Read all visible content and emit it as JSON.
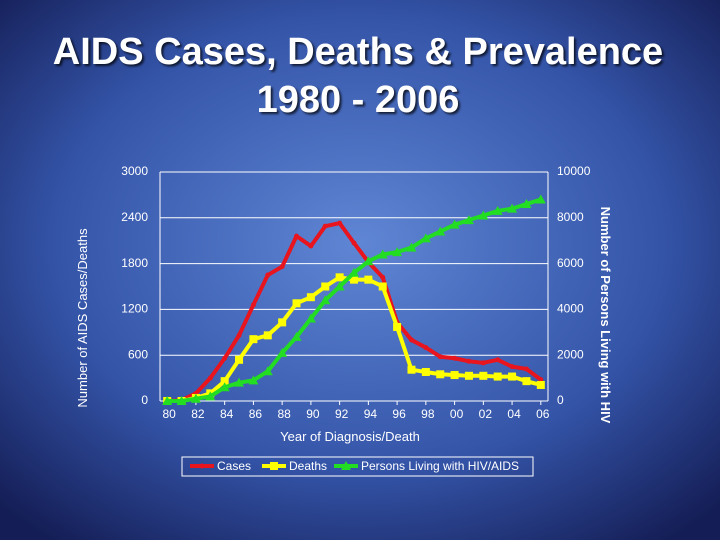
{
  "chart_data": {
    "type": "line",
    "title": [
      "AIDS Cases, Deaths & Prevalence",
      "1980 - 2006"
    ],
    "x_label": "Year of Diagnosis/Death",
    "y_label": "Number of AIDS Cases/Deaths",
    "y2_label": "Number of Persons Living with HIV",
    "x": [
      1980,
      1981,
      1982,
      1983,
      1984,
      1985,
      1986,
      1987,
      1988,
      1989,
      1990,
      1991,
      1992,
      1993,
      1994,
      1995,
      1996,
      1997,
      1998,
      1999,
      2000,
      2001,
      2002,
      2003,
      2004,
      2005,
      2006
    ],
    "xlim": [
      1979.5,
      2006.5
    ],
    "xticks": [
      {
        "value": 1980,
        "label": "80"
      },
      {
        "value": 1982,
        "label": "82"
      },
      {
        "value": 1984,
        "label": "84"
      },
      {
        "value": 1986,
        "label": "86"
      },
      {
        "value": 1988,
        "label": "88"
      },
      {
        "value": 1990,
        "label": "90"
      },
      {
        "value": 1992,
        "label": "92"
      },
      {
        "value": 1994,
        "label": "94"
      },
      {
        "value": 1996,
        "label": "96"
      },
      {
        "value": 1998,
        "label": "98"
      },
      {
        "value": 2000,
        "label": "00"
      },
      {
        "value": 2002,
        "label": "02"
      },
      {
        "value": 2004,
        "label": "04"
      },
      {
        "value": 2006,
        "label": "06"
      }
    ],
    "ylim": [
      0,
      3000
    ],
    "yticks": [
      0,
      600,
      1200,
      1800,
      2400,
      3000
    ],
    "y2lim": [
      0,
      10000
    ],
    "y2ticks": [
      0,
      2000,
      4000,
      6000,
      8000,
      10000
    ],
    "grid": true,
    "legend": "bottom",
    "series": [
      {
        "name": "Cases",
        "color": "#e8141e",
        "marker": "circle",
        "values": [
          0,
          10,
          100,
          300,
          560,
          860,
          1260,
          1650,
          1760,
          2160,
          2030,
          2290,
          2330,
          2070,
          1820,
          1620,
          1030,
          800,
          700,
          580,
          560,
          520,
          500,
          540,
          450,
          420,
          280
        ]
      },
      {
        "name": "Deaths",
        "color": "#ffff00",
        "marker": "square",
        "values": [
          0,
          0,
          40,
          100,
          260,
          540,
          810,
          860,
          1030,
          1280,
          1360,
          1500,
          1620,
          1590,
          1590,
          1500,
          970,
          410,
          380,
          350,
          340,
          330,
          330,
          320,
          320,
          260,
          210
        ]
      },
      {
        "name": "Persons Living with HIV/AIDS",
        "color": "#22dd22",
        "marker": "triangle",
        "axis": "y2",
        "values": [
          0,
          0,
          100,
          200,
          600,
          800,
          900,
          1300,
          2100,
          2800,
          3600,
          4400,
          5000,
          5600,
          6100,
          6400,
          6500,
          6700,
          7100,
          7400,
          7700,
          7900,
          8100,
          8300,
          8400,
          8600,
          8800
        ]
      }
    ]
  }
}
